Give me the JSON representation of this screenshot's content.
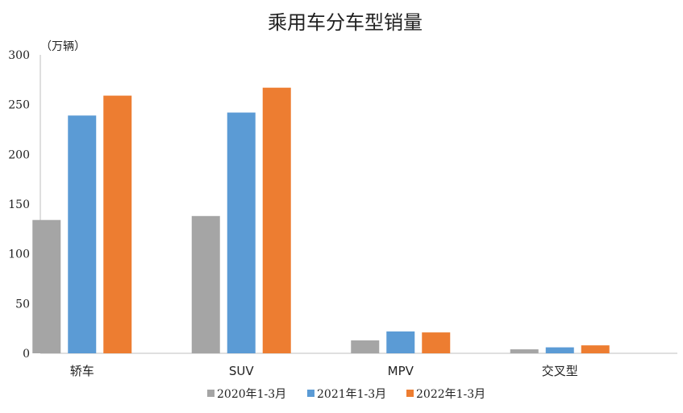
{
  "chart_data": {
    "type": "bar",
    "title": "乘用车分车型销量",
    "unit_label": "（万辆）",
    "categories": [
      "轿车",
      "SUV",
      "MPV",
      "交叉型"
    ],
    "series": [
      {
        "name": "2020年1-3月",
        "color": "#a5a5a5",
        "values": [
          134,
          138,
          13,
          4
        ]
      },
      {
        "name": "2021年1-3月",
        "color": "#5b9bd5",
        "values": [
          239,
          242,
          22,
          6
        ]
      },
      {
        "name": "2022年1-3月",
        "color": "#ed7d31",
        "values": [
          259,
          267,
          21,
          8
        ]
      }
    ],
    "y_ticks": [
      0,
      50,
      100,
      150,
      200,
      250,
      300
    ],
    "ylim": [
      0,
      300
    ],
    "grid": false,
    "legend_position": "bottom"
  }
}
